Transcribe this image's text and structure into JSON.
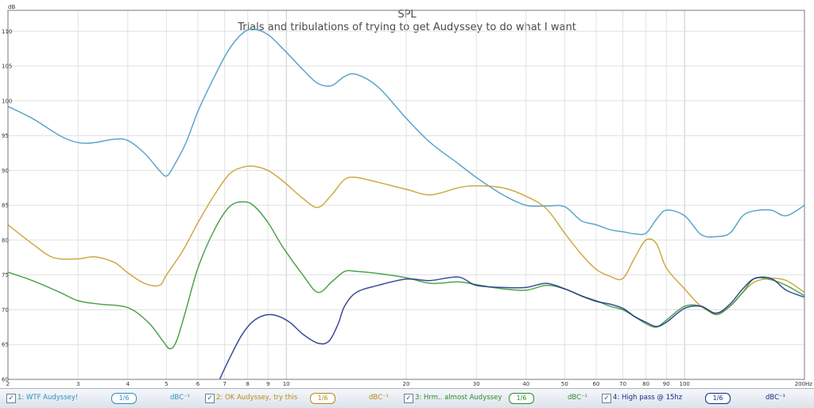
{
  "chart_data": {
    "type": "line",
    "title": "SPL",
    "subtitle": "Trials and tribulations of trying to get Audyssey to do what I want",
    "ylabel": "dB",
    "x_scale": "log",
    "xlim": [
      2,
      200
    ],
    "ylim": [
      60,
      113
    ],
    "grid": true,
    "x_ticks": [
      {
        "v": 2,
        "t": "2"
      },
      {
        "v": 3,
        "t": "3"
      },
      {
        "v": 4,
        "t": "4"
      },
      {
        "v": 5,
        "t": "5"
      },
      {
        "v": 6,
        "t": "6"
      },
      {
        "v": 7,
        "t": "7"
      },
      {
        "v": 8,
        "t": "8"
      },
      {
        "v": 9,
        "t": "9"
      },
      {
        "v": 10,
        "t": "10"
      },
      {
        "v": 20,
        "t": "20"
      },
      {
        "v": 30,
        "t": "30"
      },
      {
        "v": 40,
        "t": "40"
      },
      {
        "v": 50,
        "t": "50"
      },
      {
        "v": 60,
        "t": "60"
      },
      {
        "v": 70,
        "t": "70"
      },
      {
        "v": 80,
        "t": "80"
      },
      {
        "v": 90,
        "t": "90"
      },
      {
        "v": 100,
        "t": "100"
      },
      {
        "v": 200,
        "t": "200Hz"
      }
    ],
    "y_ticks": [
      60,
      65,
      70,
      75,
      80,
      85,
      90,
      95,
      100,
      105,
      110
    ],
    "series": [
      {
        "name": "1: WTF Audyssey!",
        "color": "#4a9cc4",
        "x": [
          2,
          2.3,
          2.7,
          3,
          3.3,
          3.7,
          4,
          4.4,
          4.8,
          5,
          5.2,
          5.6,
          6,
          6.6,
          7.2,
          7.8,
          8.3,
          9,
          9.8,
          11,
          12,
          13,
          14,
          15,
          17,
          20,
          23,
          27,
          30,
          35,
          40,
          45,
          50,
          55,
          60,
          65,
          70,
          75,
          80,
          85,
          90,
          100,
          110,
          120,
          130,
          140,
          150,
          165,
          180,
          200
        ],
        "y": [
          99.2,
          97.5,
          95,
          94,
          94,
          94.5,
          94.3,
          92.5,
          90,
          89.2,
          90.5,
          94,
          98.5,
          103.5,
          107.5,
          109.8,
          110.3,
          109.5,
          107.5,
          104.5,
          102.5,
          102.2,
          103.5,
          103.8,
          102,
          97.5,
          94,
          91,
          89,
          86.5,
          85,
          84.9,
          84.8,
          82.8,
          82.2,
          81.5,
          81.2,
          80.9,
          81,
          83,
          84.3,
          83.5,
          80.8,
          80.5,
          81,
          83.5,
          84.2,
          84.3,
          83.5,
          85
        ]
      },
      {
        "name": "2: OK Audyssey, try this",
        "color": "#c9a030",
        "x": [
          2,
          2.3,
          2.6,
          3,
          3.3,
          3.7,
          4,
          4.4,
          4.8,
          5,
          5.5,
          6,
          6.6,
          7.2,
          7.8,
          8.3,
          9,
          9.8,
          11,
          12,
          13,
          14,
          15,
          17,
          20,
          23,
          27,
          30,
          35,
          40,
          45,
          50,
          55,
          60,
          65,
          70,
          75,
          80,
          85,
          90,
          100,
          110,
          120,
          130,
          140,
          150,
          165,
          180,
          200
        ],
        "y": [
          82.2,
          79.5,
          77.5,
          77.3,
          77.6,
          76.8,
          75.3,
          73.8,
          73.5,
          75,
          78.5,
          82.5,
          86.5,
          89.5,
          90.5,
          90.6,
          90,
          88.5,
          86,
          84.7,
          86.5,
          88.7,
          89,
          88.3,
          87.3,
          86.5,
          87.5,
          87.8,
          87.5,
          86.3,
          84.5,
          81,
          78,
          75.8,
          74.8,
          74.5,
          77.5,
          80,
          79.5,
          76,
          73,
          70.5,
          69.5,
          70.5,
          72.5,
          74,
          74.5,
          74.2,
          72.5
        ]
      },
      {
        "name": "3: Hrm.. almost Audyssey",
        "color": "#3a9a3a",
        "x": [
          2,
          2.3,
          2.7,
          3,
          3.4,
          4,
          4.5,
          4.9,
          5.1,
          5.3,
          5.6,
          6,
          6.6,
          7.2,
          7.8,
          8.3,
          9,
          9.8,
          11,
          12,
          13,
          14,
          15,
          17,
          20,
          23,
          27,
          30,
          35,
          40,
          45,
          50,
          55,
          60,
          65,
          70,
          75,
          80,
          85,
          90,
          100,
          110,
          120,
          130,
          140,
          150,
          165,
          180,
          200
        ],
        "y": [
          75.4,
          74.2,
          72.5,
          71.3,
          70.8,
          70.3,
          68.2,
          65.5,
          64.4,
          65.5,
          70,
          76,
          81.5,
          84.8,
          85.5,
          84.9,
          82.5,
          79,
          75,
          72.5,
          74,
          75.5,
          75.5,
          75.2,
          74.6,
          73.8,
          74,
          73.6,
          73,
          72.8,
          73.5,
          73,
          72,
          71.3,
          70.5,
          70,
          69,
          68,
          67.5,
          68.5,
          70.5,
          70.5,
          69.3,
          70.5,
          72.5,
          74.5,
          74.3,
          73.5,
          72
        ]
      },
      {
        "name": "4: High pass @ 15hz",
        "color": "#1a2a8a",
        "x": [
          6.8,
          7.2,
          7.7,
          8.2,
          8.8,
          9.4,
          10.2,
          11,
          12,
          12.8,
          13.5,
          14,
          15,
          17,
          20,
          23,
          27,
          30,
          35,
          40,
          45,
          50,
          55,
          60,
          65,
          70,
          75,
          80,
          85,
          90,
          100,
          110,
          120,
          130,
          140,
          150,
          165,
          180,
          200
        ],
        "y": [
          60,
          63,
          66.2,
          68.2,
          69.2,
          69.2,
          68.2,
          66.5,
          65.2,
          65.5,
          68,
          70.5,
          72.5,
          73.5,
          74.4,
          74.2,
          74.7,
          73.5,
          73.2,
          73.2,
          73.8,
          73,
          72,
          71.2,
          70.8,
          70.2,
          69,
          68.2,
          67.6,
          68.2,
          70.2,
          70.5,
          69.5,
          70.8,
          73,
          74.5,
          74.5,
          72.8,
          71.8
        ]
      }
    ]
  },
  "legend": {
    "items": [
      {
        "check": "✓",
        "label": "1: WTF Audyssey!",
        "smooth": "1/6",
        "unit": "dBC⁻¹",
        "color": "#2f8fc0"
      },
      {
        "check": "✓",
        "label": "2: OK Audyssey, try this",
        "smooth": "1/6",
        "unit": "dBC⁻¹",
        "color": "#b8891a"
      },
      {
        "check": "✓",
        "label": "3: Hrm.. almost Audyssey",
        "smooth": "1/6",
        "unit": "dBC⁻¹",
        "color": "#2e8a2e"
      },
      {
        "check": "✓",
        "label": "4: High pass @ 15hz",
        "smooth": "1/6",
        "unit": "dBC⁻¹",
        "color": "#1a2a8a"
      }
    ]
  }
}
